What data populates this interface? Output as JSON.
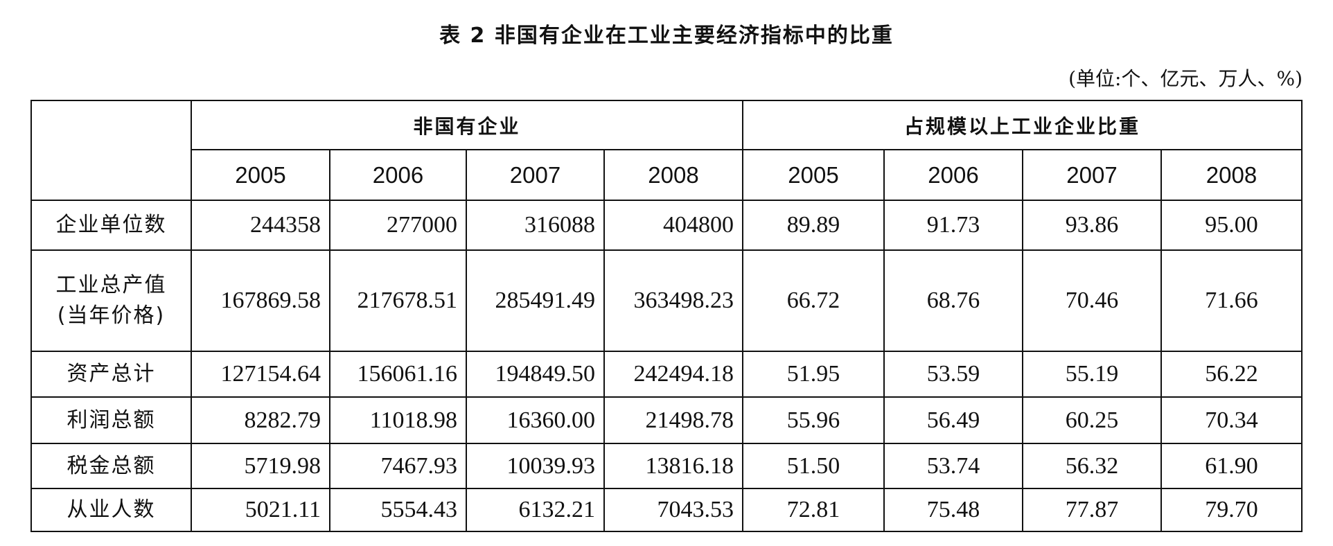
{
  "header": {
    "title": "表 2  非国有企业在工业主要经济指标中的比重",
    "unit": "(单位:个、亿元、万人、%)"
  },
  "table": {
    "groups": [
      {
        "title": "非国有企业",
        "years": [
          "2005",
          "2006",
          "2007",
          "2008"
        ]
      },
      {
        "title": "占规模以上工业企业比重",
        "years": [
          "2005",
          "2006",
          "2007",
          "2008"
        ]
      }
    ],
    "rows": [
      {
        "label": [
          "企业单位数"
        ],
        "cells": [
          "244358",
          "277000",
          "316088",
          "404800",
          "89.89",
          "91.73",
          "93.86",
          "95.00"
        ]
      },
      {
        "label": [
          "工业总产值",
          "(当年价格)"
        ],
        "cells": [
          "167869.58",
          "217678.51",
          "285491.49",
          "363498.23",
          "66.72",
          "68.76",
          "70.46",
          "71.66"
        ]
      },
      {
        "label": [
          "资产总计"
        ],
        "cells": [
          "127154.64",
          "156061.16",
          "194849.50",
          "242494.18",
          "51.95",
          "53.59",
          "55.19",
          "56.22"
        ]
      },
      {
        "label": [
          "利润总额"
        ],
        "cells": [
          "8282.79",
          "11018.98",
          "16360.00",
          "21498.78",
          "55.96",
          "56.49",
          "60.25",
          "70.34"
        ]
      },
      {
        "label": [
          "税金总额"
        ],
        "cells": [
          "5719.98",
          "7467.93",
          "10039.93",
          "13816.18",
          "51.50",
          "53.74",
          "56.32",
          "61.90"
        ]
      },
      {
        "label": [
          "从业人数"
        ],
        "cells": [
          "5021.11",
          "5554.43",
          "6132.21",
          "7043.53",
          "72.81",
          "75.48",
          "77.87",
          "79.70"
        ]
      }
    ]
  }
}
